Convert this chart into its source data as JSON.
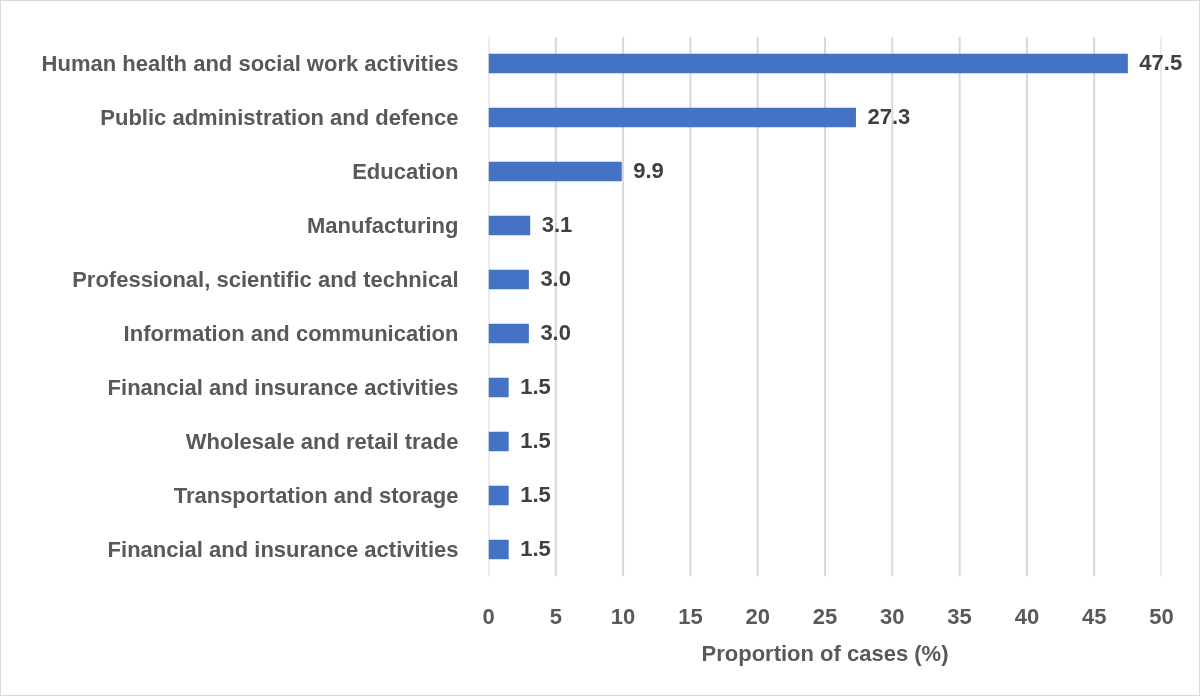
{
  "chart_data": {
    "type": "bar",
    "orientation": "horizontal",
    "xlabel": "Proportion of cases (%)",
    "categories": [
      "Human health and social work activities",
      "Public administration and defence",
      "Education",
      "Manufacturing",
      "Professional, scientific and technical",
      "Information and communication",
      "Financial and insurance activities",
      "Wholesale and retail trade",
      "Transportation and storage",
      "Financial and insurance activities"
    ],
    "values": [
      47.5,
      27.3,
      9.9,
      3.1,
      3.0,
      3.0,
      1.5,
      1.5,
      1.5,
      1.5
    ],
    "value_labels": [
      "47.5",
      "27.3",
      "9.9",
      "3.1",
      "3.0",
      "3.0",
      "1.5",
      "1.5",
      "1.5",
      "1.5"
    ],
    "color": "#4472c4",
    "xlim": [
      0,
      50
    ],
    "xticks": [
      0,
      5,
      10,
      15,
      20,
      25,
      30,
      35,
      40,
      45,
      50
    ],
    "grid": "x",
    "legend": false
  }
}
